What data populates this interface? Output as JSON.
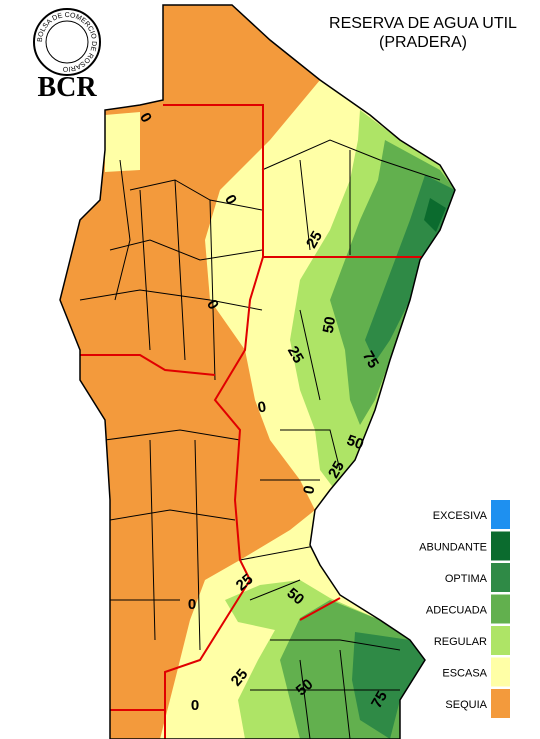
{
  "header": {
    "logo_ring": "BOLSA DE COMERCIO DE ROSARIO",
    "logo": "BCR",
    "title": "RESERVA DE AGUA UTIL",
    "subtitle": "(PRADERA)"
  },
  "legend": [
    {
      "label": "EXCESIVA",
      "color": "#1e90f0"
    },
    {
      "label": "ABUNDANTE",
      "color": "#0b6b2e"
    },
    {
      "label": "OPTIMA",
      "color": "#2f8a46"
    },
    {
      "label": "ADECUADA",
      "color": "#62b04e"
    },
    {
      "label": "REGULAR",
      "color": "#aee466"
    },
    {
      "label": "ESCASA",
      "color": "#ffffa6"
    },
    {
      "label": "SEQUIA",
      "color": "#f39a3c"
    }
  ],
  "contour_labels": [
    0,
    0,
    25,
    0,
    50,
    25,
    75,
    0,
    50,
    25,
    0,
    25,
    50,
    0,
    25,
    50,
    75,
    0
  ]
}
